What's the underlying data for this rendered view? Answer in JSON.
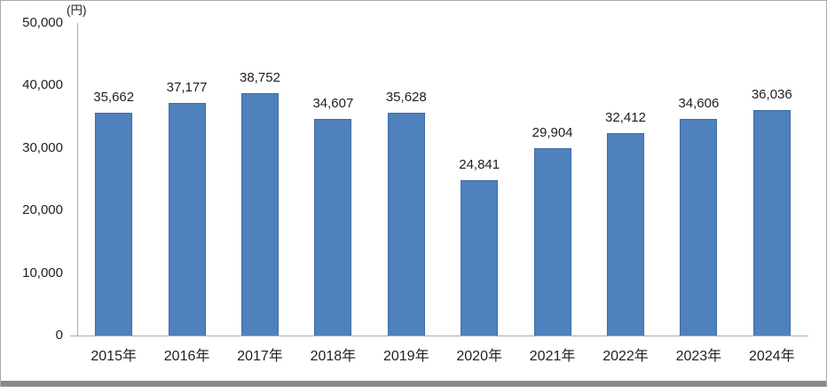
{
  "unit_label": "(円)",
  "colors": {
    "bar": "#4F81BD",
    "bar_border": "#3E6CA5",
    "axis": "#ABABAB",
    "text": "#1F1F1F",
    "frame": "#A9A9A9",
    "bottom_strip": "#888888"
  },
  "chart_data": {
    "type": "bar",
    "title": "",
    "xlabel": "",
    "ylabel": "(円)",
    "categories": [
      "2015年",
      "2016年",
      "2017年",
      "2018年",
      "2019年",
      "2020年",
      "2021年",
      "2022年",
      "2023年",
      "2024年"
    ],
    "values": [
      35662,
      37177,
      38752,
      34607,
      35628,
      24841,
      29904,
      32412,
      34606,
      36036
    ],
    "data_labels": [
      "35,662",
      "37,177",
      "38,752",
      "34,607",
      "35,628",
      "24,841",
      "29,904",
      "32,412",
      "34,606",
      "36,036"
    ],
    "ylim": [
      0,
      50000
    ],
    "ytick_interval": 10000,
    "ytick_labels": [
      "0",
      "10,000",
      "20,000",
      "30,000",
      "40,000",
      "50,000"
    ],
    "grid": false,
    "legend_position": "none",
    "bar_color": "#4F81BD"
  }
}
